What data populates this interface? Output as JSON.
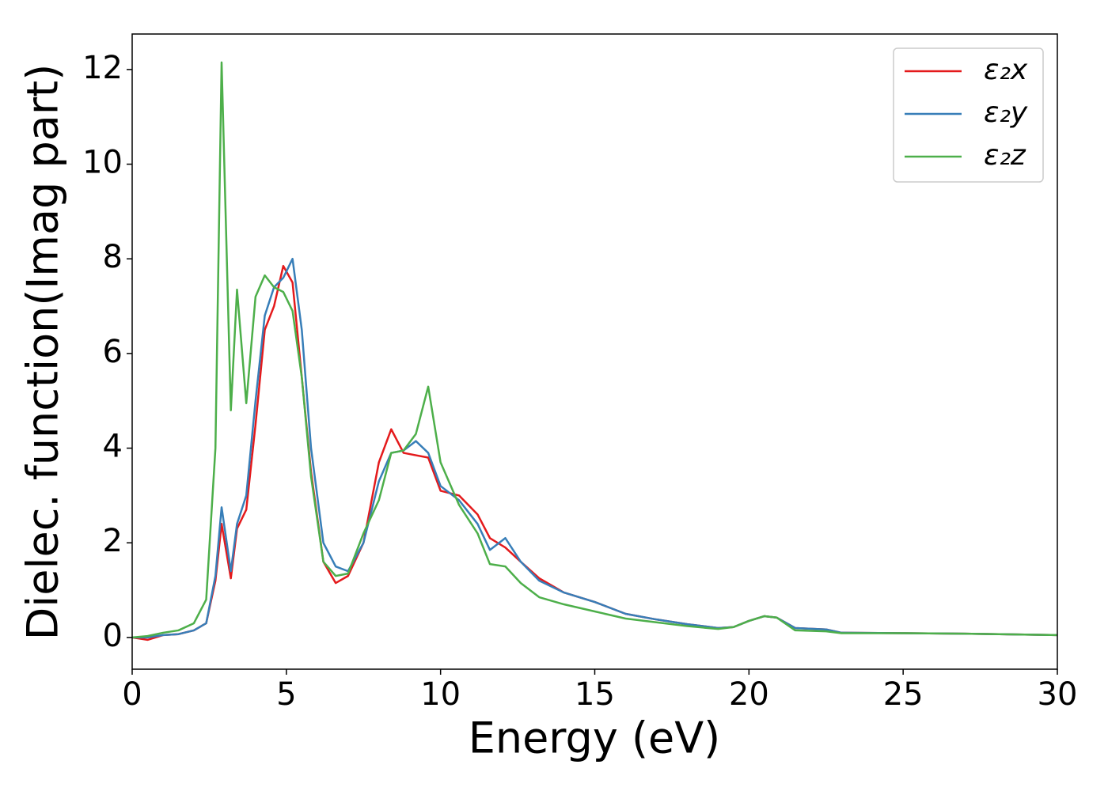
{
  "chart_data": {
    "type": "line",
    "xlabel": "Energy (eV)",
    "ylabel": "Dielec. function(Imag part)",
    "x": [
      0,
      0.5,
      1,
      1.5,
      2,
      2.4,
      2.7,
      2.9,
      3.2,
      3.4,
      3.7,
      4.0,
      4.3,
      4.6,
      4.9,
      5.2,
      5.5,
      5.8,
      6.2,
      6.6,
      7.0,
      7.5,
      8.0,
      8.4,
      8.8,
      9.2,
      9.6,
      10,
      10.6,
      11.2,
      11.6,
      12.1,
      12.6,
      13.2,
      14,
      15,
      16,
      17,
      18,
      19,
      19.5,
      20,
      20.5,
      20.9,
      21.5,
      22.5,
      23,
      25,
      27,
      30
    ],
    "series": [
      {
        "name": "ε₂x",
        "color": "#e41a1c",
        "values": [
          0,
          -0.05,
          0.05,
          0.07,
          0.15,
          0.3,
          1.2,
          2.4,
          1.25,
          2.3,
          2.7,
          4.5,
          6.5,
          7.0,
          7.85,
          7.5,
          5.5,
          3.5,
          1.6,
          1.15,
          1.3,
          2.0,
          3.7,
          4.4,
          3.9,
          3.85,
          3.8,
          3.1,
          3.0,
          2.6,
          2.1,
          1.9,
          1.6,
          1.25,
          0.95,
          0.75,
          0.5,
          0.38,
          0.28,
          0.2,
          0.22,
          0.35,
          0.45,
          0.42,
          0.2,
          0.17,
          0.1,
          0.09,
          0.08,
          0.05
        ]
      },
      {
        "name": "ε₂y",
        "color": "#377eb8",
        "values": [
          0,
          0.0,
          0.05,
          0.07,
          0.15,
          0.3,
          1.3,
          2.75,
          1.4,
          2.4,
          3.0,
          5.0,
          6.8,
          7.4,
          7.6,
          8.0,
          6.5,
          4.0,
          2.0,
          1.5,
          1.4,
          2.0,
          3.3,
          3.9,
          3.95,
          4.15,
          3.9,
          3.2,
          2.9,
          2.4,
          1.85,
          2.1,
          1.6,
          1.2,
          0.95,
          0.75,
          0.5,
          0.38,
          0.28,
          0.2,
          0.22,
          0.35,
          0.45,
          0.42,
          0.2,
          0.17,
          0.1,
          0.09,
          0.08,
          0.05
        ]
      },
      {
        "name": "ε₂z",
        "color": "#4daf4a",
        "values": [
          0,
          0.03,
          0.1,
          0.15,
          0.3,
          0.8,
          4.0,
          12.15,
          4.8,
          7.35,
          4.95,
          7.2,
          7.65,
          7.4,
          7.3,
          6.9,
          5.5,
          3.4,
          1.6,
          1.3,
          1.35,
          2.2,
          2.9,
          3.9,
          3.95,
          4.3,
          5.3,
          3.7,
          2.8,
          2.2,
          1.55,
          1.5,
          1.15,
          0.85,
          0.7,
          0.55,
          0.4,
          0.32,
          0.24,
          0.18,
          0.22,
          0.35,
          0.45,
          0.42,
          0.15,
          0.13,
          0.09,
          0.09,
          0.08,
          0.05
        ]
      }
    ],
    "xlim": [
      0,
      30
    ],
    "xticks": [
      0,
      5,
      10,
      15,
      20,
      25,
      30
    ],
    "ylim": [
      -0.67,
      12.75
    ],
    "yticks": [
      0,
      2,
      4,
      6,
      8,
      10,
      12
    ],
    "grid": false,
    "legend": "upper right"
  }
}
